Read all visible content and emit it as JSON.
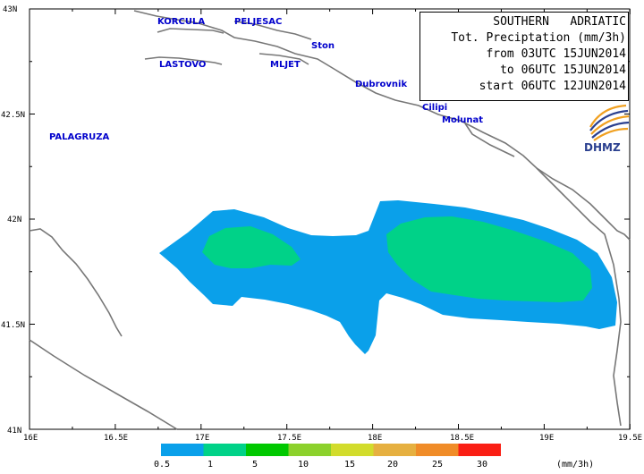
{
  "title": {
    "region": "SOUTHERN   ADRIATIC",
    "variable": "Tot. Preciptation (mm/3h)",
    "from": "from 03UTC 15JUN2014",
    "to": "to 06UTC 15JUN2014",
    "start": "start 06UTC 12JUN2014"
  },
  "logo": {
    "name": "DHMZ",
    "icon": "dhmz-swirl-logo"
  },
  "axes": {
    "lat_ticks": [
      "43N",
      "42.5N",
      "42N",
      "41.5N",
      "41N"
    ],
    "lon_ticks": [
      "16E",
      "16.5E",
      "17E",
      "17.5E",
      "18E",
      "18.5E",
      "19E",
      "19.5E"
    ]
  },
  "places": [
    {
      "name": "KORCULA"
    },
    {
      "name": "PELJESAC"
    },
    {
      "name": "Ston"
    },
    {
      "name": "LASTOVO"
    },
    {
      "name": "MLJET"
    },
    {
      "name": "Dubrovnik"
    },
    {
      "name": "Cilipi"
    },
    {
      "name": "Molunat"
    },
    {
      "name": "PALAGRUZA"
    }
  ],
  "legend": {
    "ticks": [
      "0.5",
      "1",
      "5",
      "10",
      "15",
      "20",
      "25",
      "30"
    ],
    "unit": "(mm/3h)",
    "colors": [
      "#0aa0ea",
      "#00d288",
      "#00c800",
      "#8cd12c",
      "#d2dc2c",
      "#e6b040",
      "#f08c28",
      "#fa1e14"
    ]
  },
  "precip_colors": {
    "light": "#0aa0ea",
    "moderate": "#00d288"
  }
}
